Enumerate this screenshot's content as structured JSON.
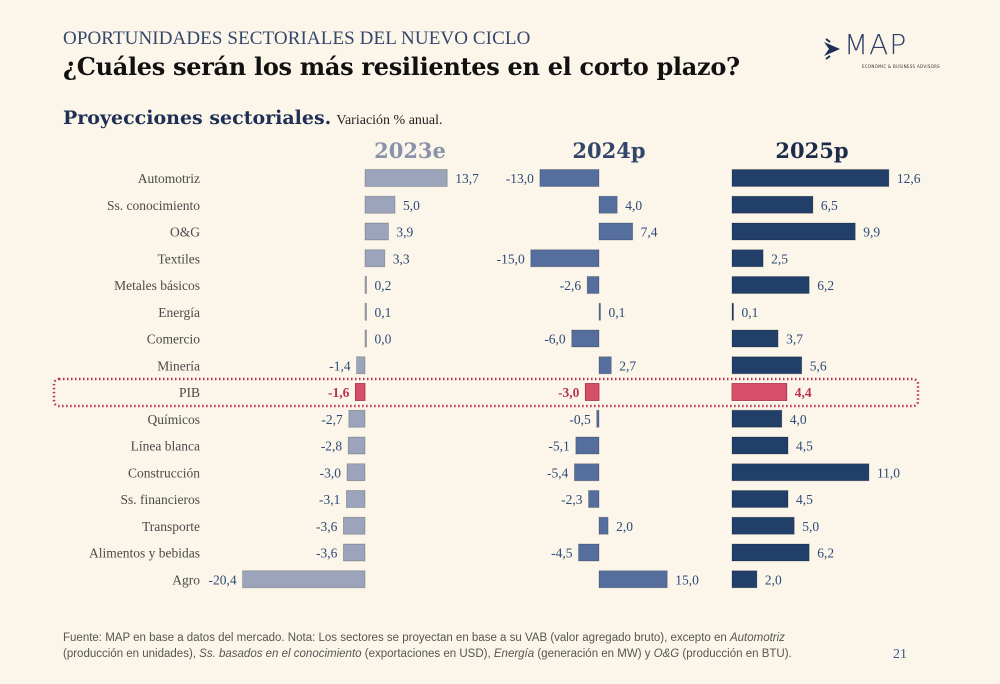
{
  "header": {
    "kicker": "OPORTUNIDADES SECTORIALES DEL NUEVO CICLO",
    "title": "¿Cuáles serán los más resilientes en el corto plazo?",
    "logo_text": "MAP",
    "logo_sub": "ECONOMIC & BUSINESS ADVISORS"
  },
  "subtitle": {
    "bold": "Proyecciones sectoriales.",
    "normal": "Variación % anual."
  },
  "colors": {
    "s2023": "#9ba4ba",
    "s2024": "#566e9e",
    "s2025": "#213f68",
    "highlight": "#d64f68",
    "label_value": "#2d4a7a",
    "highlight_text": "#b8344d"
  },
  "chart_data": {
    "type": "bar",
    "orientation": "horizontal",
    "title": "Proyecciones sectoriales. Variación % anual.",
    "categories": [
      "Automotriz",
      "Ss. conocimiento",
      "O&G",
      "Textiles",
      "Metales básicos",
      "Energía",
      "Comercio",
      "Minería",
      "PIB",
      "Químicos",
      "Línea blanca",
      "Construcción",
      "Ss. financieros",
      "Transporte",
      "Alimentos y bebidas",
      "Agro"
    ],
    "highlight_category": "PIB",
    "series": [
      {
        "name": "2023e",
        "values": [
          13.7,
          5.0,
          3.9,
          3.3,
          0.2,
          0.1,
          0.0,
          -1.4,
          -1.6,
          -2.7,
          -2.8,
          -3.0,
          -3.1,
          -3.6,
          -3.6,
          -20.4
        ],
        "labels": [
          "13,7",
          "5,0",
          "3,9",
          "3,3",
          "0,2",
          "0,1",
          "0,0",
          "-1,4",
          "-1,6",
          "-2,7",
          "-2,8",
          "-3,0",
          "-3,1",
          "-3,6",
          "-3,6",
          "-20,4"
        ]
      },
      {
        "name": "2024p",
        "values": [
          -13.0,
          4.0,
          7.4,
          -15.0,
          -2.6,
          0.1,
          -6.0,
          2.7,
          -3.0,
          -0.5,
          -5.1,
          -5.4,
          -2.3,
          2.0,
          -4.5,
          15.0
        ],
        "labels": [
          "-13,0",
          "4,0",
          "7,4",
          "-15,0",
          "-2,6",
          "0,1",
          "-6,0",
          "2,7",
          "-3,0",
          "-0,5",
          "-5,1",
          "-5,4",
          "-2,3",
          "2,0",
          "-4,5",
          "15,0"
        ]
      },
      {
        "name": "2025p",
        "values": [
          12.6,
          6.5,
          9.9,
          2.5,
          6.2,
          0.1,
          3.7,
          5.6,
          4.4,
          4.0,
          4.5,
          11.0,
          4.5,
          5.0,
          6.2,
          2.0
        ],
        "labels": [
          "12,6",
          "6,5",
          "9,9",
          "2,5",
          "6,2",
          "0,1",
          "3,7",
          "5,6",
          "4,4",
          "4,0",
          "4,5",
          "11,0",
          "4,5",
          "5,0",
          "6,2",
          "2,0"
        ]
      }
    ],
    "xlabel": "",
    "ylabel": "",
    "grid": false,
    "legend": "none"
  },
  "footer": {
    "line1_a": "Fuente: MAP en base a datos del mercado. Nota: Los sectores se proyectan en base a su VAB (valor agregado bruto), excepto en ",
    "line1_i": "Automotriz",
    "line2_a": "(producción en unidades), ",
    "line2_i1": "Ss. basados en el conocimiento",
    "line2_b": " (exportaciones en USD), ",
    "line2_i2": "Energía",
    "line2_c": " (generación en MW) y ",
    "line2_i3": "O&G",
    "line2_d": " (producción en BTU).",
    "page_number": "21"
  }
}
